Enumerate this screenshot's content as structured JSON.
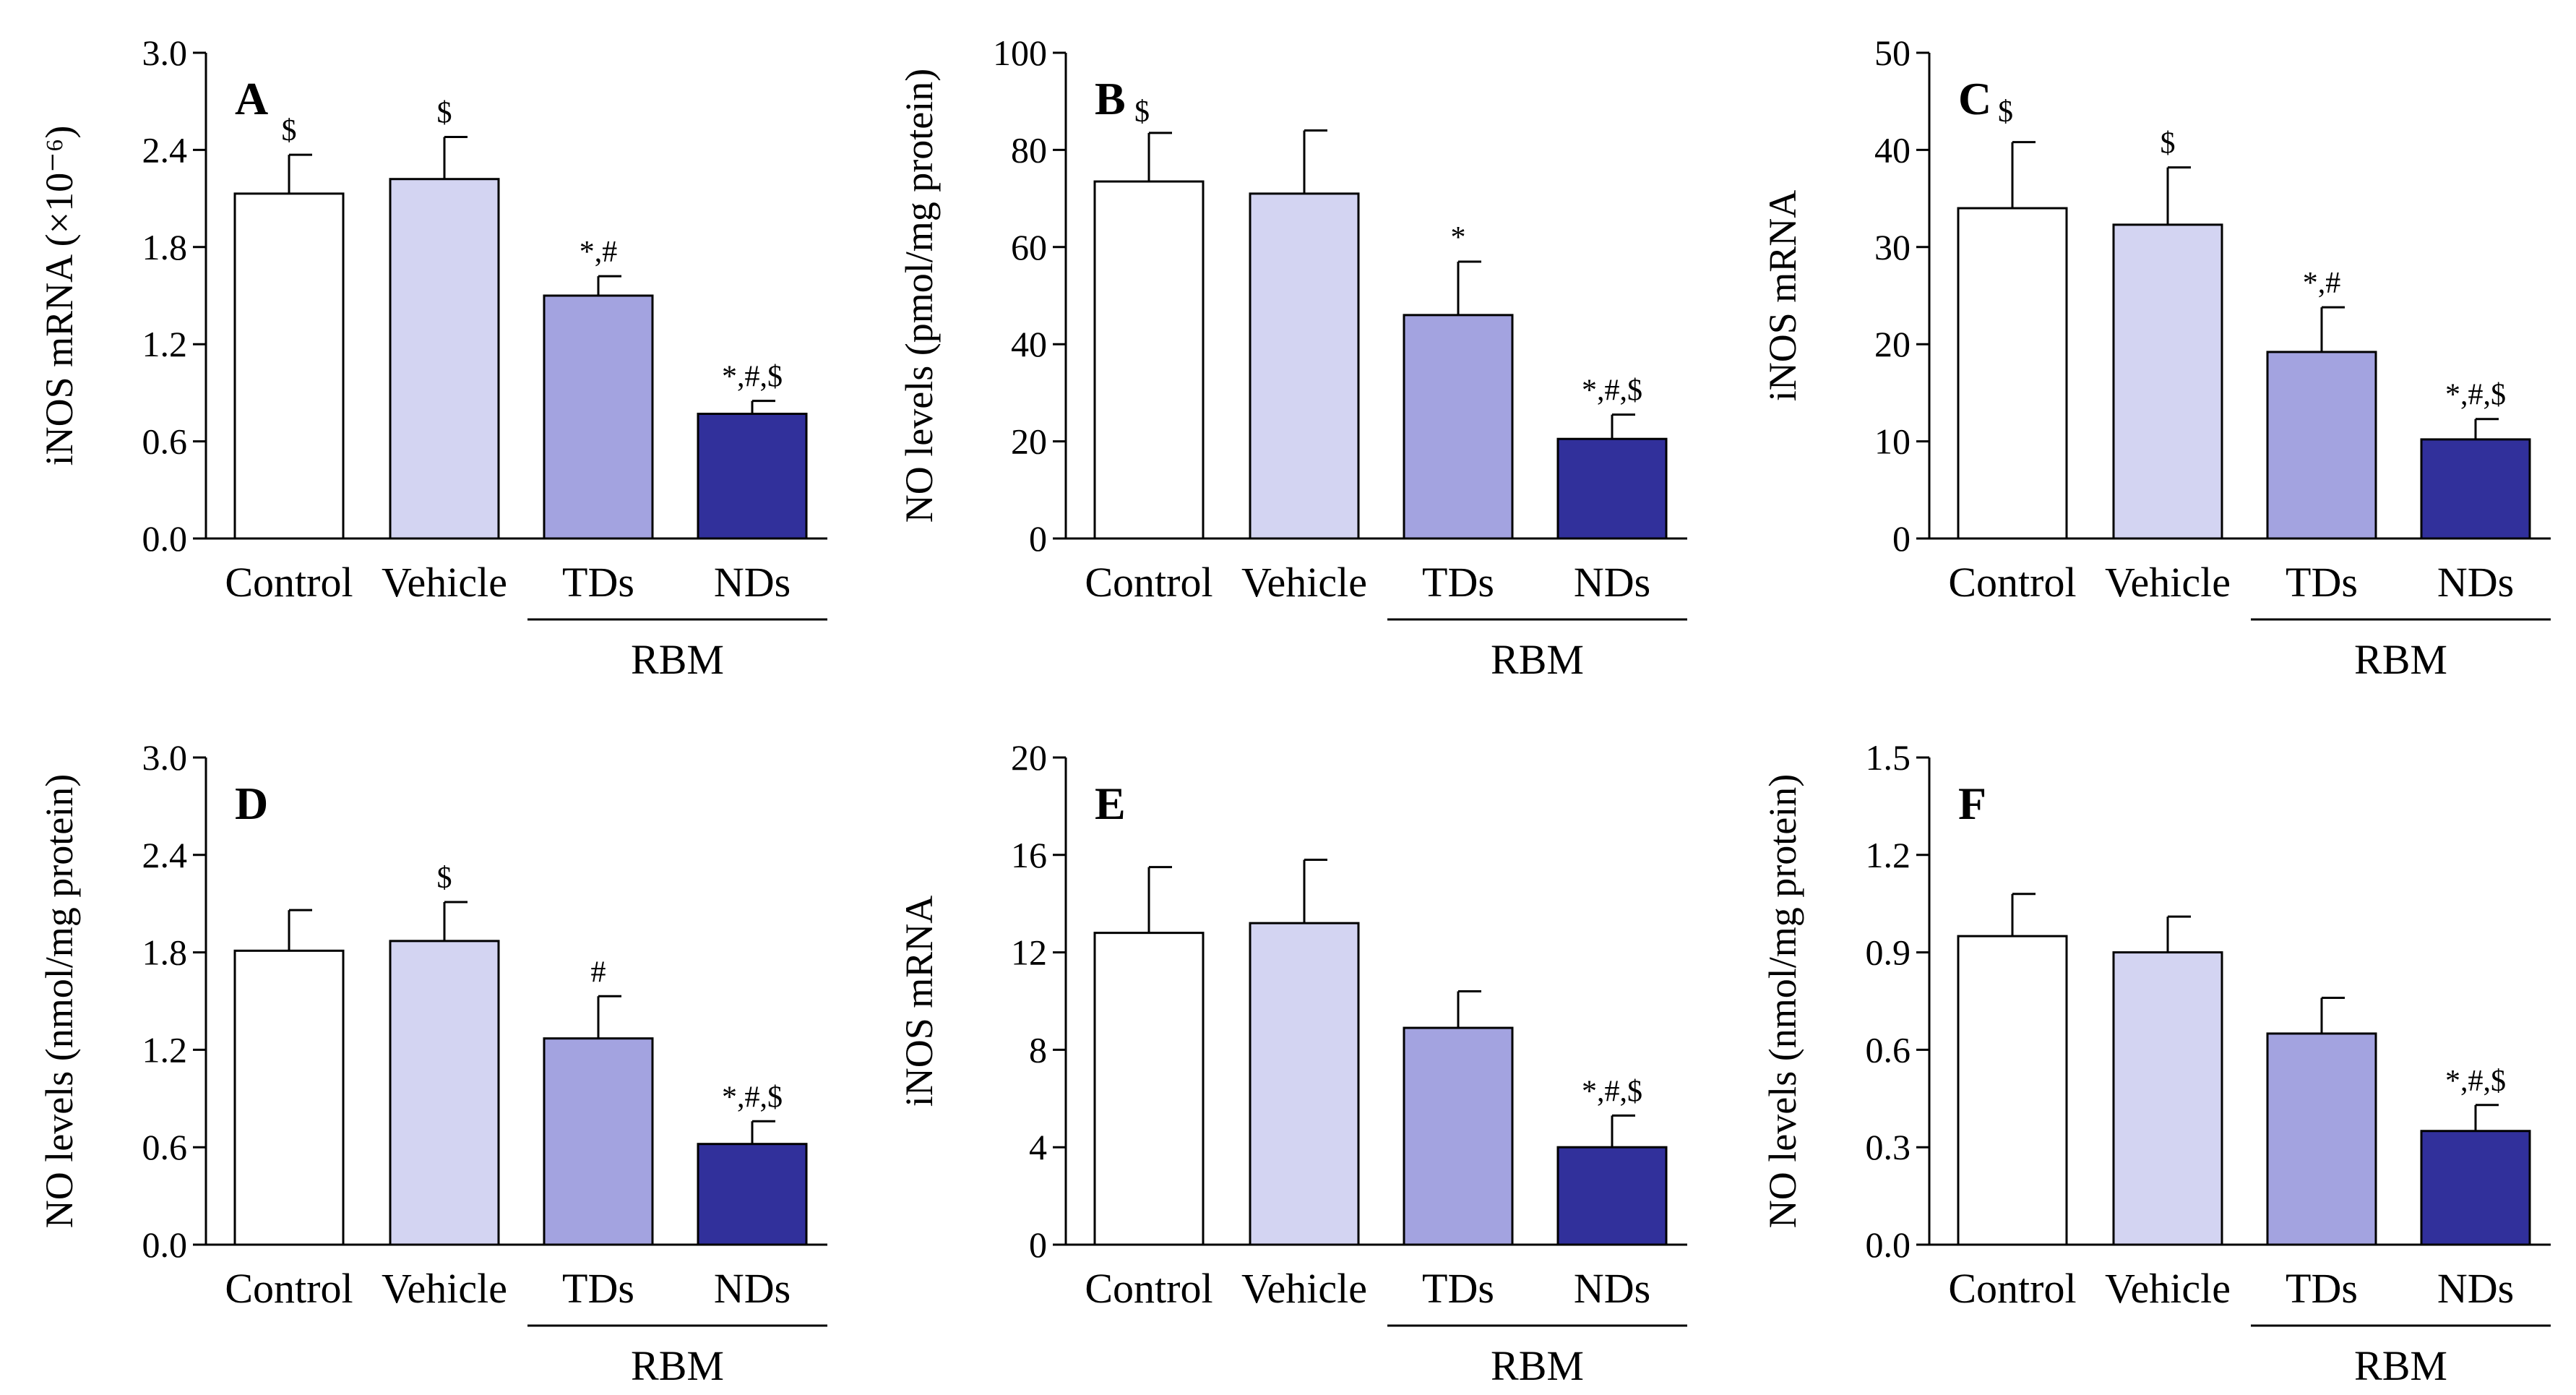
{
  "figure": {
    "background": "#ffffff",
    "axis_color": "#000000",
    "bar_colors": [
      "#ffffff",
      "#d3d4f2",
      "#a3a3e0",
      "#31309b"
    ],
    "bar_edge": "#000000"
  },
  "chart_data": [
    {
      "type": "bar",
      "panel": "A",
      "categories": [
        "Control",
        "Vehicle",
        "TDs",
        "NDs"
      ],
      "group_label": "RBM",
      "ylabel": "iNOS mRNA (×10⁻⁶)",
      "ylim": [
        0,
        3.0
      ],
      "yticks": [
        "0.0",
        "0.6",
        "1.2",
        "1.8",
        "2.4",
        "3.0"
      ],
      "values": [
        2.13,
        2.22,
        1.5,
        0.77
      ],
      "errors": [
        0.24,
        0.26,
        0.12,
        0.08
      ],
      "annotations": [
        "$",
        "$",
        "*,#",
        "*,#,$"
      ]
    },
    {
      "type": "bar",
      "panel": "B",
      "panel_annotation": "$",
      "categories": [
        "Control",
        "Vehicle",
        "TDs",
        "NDs"
      ],
      "group_label": "RBM",
      "ylabel": "NO levels (pmol/mg protein)",
      "ylim": [
        0,
        100
      ],
      "yticks": [
        "0",
        "20",
        "40",
        "60",
        "80",
        "100"
      ],
      "values": [
        73.5,
        71.0,
        46.0,
        20.5
      ],
      "errors": [
        10.0,
        13.0,
        11.0,
        5.0
      ],
      "annotations": [
        "",
        "",
        "*",
        "*,#,$"
      ]
    },
    {
      "type": "bar",
      "panel": "C",
      "panel_annotation": "$",
      "categories": [
        "Control",
        "Vehicle",
        "TDs",
        "NDs"
      ],
      "group_label": "RBM",
      "ylabel": "iNOS mRNA",
      "ylim": [
        0,
        50
      ],
      "yticks": [
        "0",
        "10",
        "20",
        "30",
        "40",
        "50"
      ],
      "values": [
        34.0,
        32.3,
        19.2,
        10.2
      ],
      "errors": [
        6.8,
        5.9,
        4.6,
        2.1
      ],
      "annotations": [
        "",
        "$",
        "*,#",
        "*,#,$"
      ]
    },
    {
      "type": "bar",
      "panel": "D",
      "categories": [
        "Control",
        "Vehicle",
        "TDs",
        "NDs"
      ],
      "group_label": "RBM",
      "ylabel": "NO levels (nmol/mg protein)",
      "ylim": [
        0,
        3.0
      ],
      "yticks": [
        "0.0",
        "0.6",
        "1.2",
        "1.8",
        "2.4",
        "3.0"
      ],
      "values": [
        1.81,
        1.87,
        1.27,
        0.62
      ],
      "errors": [
        0.25,
        0.24,
        0.26,
        0.14
      ],
      "annotations": [
        "",
        "$",
        "#",
        "*,#,$"
      ]
    },
    {
      "type": "bar",
      "panel": "E",
      "categories": [
        "Control",
        "Vehicle",
        "TDs",
        "NDs"
      ],
      "group_label": "RBM",
      "ylabel": "iNOS mRNA",
      "ylim": [
        0,
        20
      ],
      "yticks": [
        "0",
        "4",
        "8",
        "12",
        "16",
        "20"
      ],
      "values": [
        12.8,
        13.2,
        8.9,
        4.0
      ],
      "errors": [
        2.7,
        2.6,
        1.5,
        1.3
      ],
      "annotations": [
        "",
        "",
        "",
        "*,#,$"
      ]
    },
    {
      "type": "bar",
      "panel": "F",
      "categories": [
        "Control",
        "Vehicle",
        "TDs",
        "NDs"
      ],
      "group_label": "RBM",
      "ylabel": "NO levels (nmol/mg protein)",
      "ylim": [
        0,
        1.5
      ],
      "yticks": [
        "0.0",
        "0.3",
        "0.6",
        "0.9",
        "1.2",
        "1.5"
      ],
      "values": [
        0.95,
        0.9,
        0.65,
        0.35
      ],
      "errors": [
        0.13,
        0.11,
        0.11,
        0.08
      ],
      "annotations": [
        "",
        "",
        "",
        "*,#,$"
      ]
    }
  ]
}
